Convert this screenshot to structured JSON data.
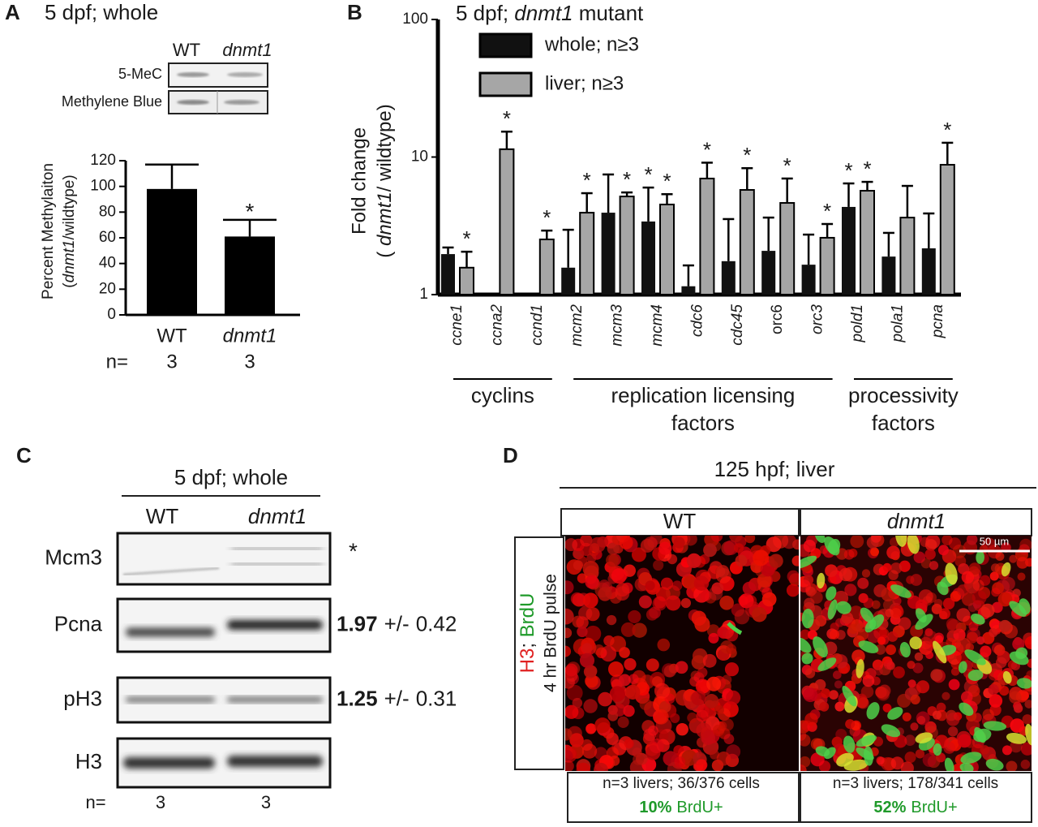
{
  "chart_data": [
    {
      "type": "bar",
      "panel": "A",
      "title": "5 dpf; whole",
      "blot": {
        "columns": [
          "WT",
          "dnmt1"
        ],
        "rows": [
          "5-MeC",
          "Methylene Blue"
        ]
      },
      "y_label": "Percent Methylaiton",
      "y_label2_parts": [
        "(",
        "dnmt1",
        "/wildtype)"
      ],
      "categories": [
        "WT",
        "dnmt1"
      ],
      "category_italic": [
        false,
        true
      ],
      "values": [
        98,
        61
      ],
      "errors": [
        19,
        13
      ],
      "significant": [
        false,
        true
      ],
      "asterisk": "*",
      "color": "#000000",
      "ylim": [
        0,
        120
      ],
      "yticks": [
        0,
        20,
        40,
        60,
        80,
        100,
        120
      ],
      "n_label": "n=",
      "n": [
        3,
        3
      ]
    },
    {
      "type": "bar",
      "panel": "B",
      "title_parts": [
        "5 dpf; ",
        "dnmt1",
        " mutant"
      ],
      "y_label": "Fold change",
      "y_label2_parts": [
        "( ",
        "dnmt1",
        "/ wildtype)"
      ],
      "log_scale": true,
      "ylim": [
        1,
        100
      ],
      "yticks": [
        1,
        10,
        100
      ],
      "asterisk": "*",
      "categories": [
        "ccne1",
        "ccna2",
        "ccnd1",
        "mcm2",
        "mcm3",
        "mcm4",
        "cdc6",
        "cdc45",
        "orc6",
        "orc3",
        "pold1",
        "pola1",
        "pcna"
      ],
      "category_italic": [
        true,
        true,
        true,
        true,
        true,
        true,
        true,
        true,
        false,
        true,
        true,
        true,
        true
      ],
      "series": [
        {
          "name": "whole; n≥3",
          "color": "#111111",
          "values": [
            1.97,
            null,
            null,
            1.57,
            3.94,
            3.4,
            1.15,
            1.75,
            2.08,
            1.65,
            4.34,
            1.89,
            2.17
          ],
          "errors": [
            0.23,
            null,
            null,
            1.39,
            3.53,
            2.6,
            0.48,
            1.79,
            1.55,
            1.08,
            2.09,
            0.92,
            1.72
          ],
          "significant": [
            false,
            false,
            false,
            false,
            false,
            true,
            false,
            false,
            false,
            false,
            true,
            false,
            false
          ]
        },
        {
          "name": "liver; n≥3",
          "color": "#a6a6a6",
          "values": [
            1.57,
            11.4,
            2.52,
            3.94,
            5.17,
            4.52,
            6.98,
            5.77,
            4.64,
            2.59,
            5.69,
            3.63,
            8.79
          ],
          "errors": [
            0.48,
            3.9,
            0.4,
            1.52,
            0.36,
            0.85,
            2.12,
            2.53,
            2.34,
            0.67,
            0.91,
            2.54,
            3.91
          ],
          "significant": [
            true,
            true,
            true,
            true,
            true,
            true,
            true,
            true,
            true,
            true,
            true,
            false,
            true
          ]
        }
      ],
      "groups": [
        {
          "label_lines": [
            "cyclins"
          ],
          "first": 0,
          "last": 2
        },
        {
          "label_lines": [
            "replication licensing",
            "factors"
          ],
          "first": 3,
          "last": 9
        },
        {
          "label_lines": [
            "processivity",
            "factors"
          ],
          "first": 10,
          "last": 12
        }
      ]
    }
  ],
  "panel_c": {
    "panel": "C",
    "title": "5 dpf; whole",
    "columns": [
      "WT",
      "dnmt1"
    ],
    "pm": "+/-",
    "rows": [
      {
        "label": "Mcm3",
        "mark": "*"
      },
      {
        "label": "Pcna",
        "fold": 1.97,
        "sd": 0.42
      },
      {
        "label": "pH3",
        "fold": 1.25,
        "sd": 0.31
      },
      {
        "label": "H3"
      }
    ],
    "n_label": "n=",
    "n": [
      3,
      3
    ]
  },
  "panel_d": {
    "panel": "D",
    "title": "125 hpf; liver",
    "columns": [
      "WT",
      "dnmt1"
    ],
    "stain_parts": [
      "H3",
      "; ",
      "BrdU"
    ],
    "pulse": "4 hr BrdU pulse",
    "scale_bar": "50 µm",
    "counts": [
      {
        "text": "n=3 livers; 36/376 cells",
        "pct": "10%",
        "label": "BrdU+"
      },
      {
        "text": "n=3 livers; 178/341 cells",
        "pct": "52%",
        "label": "BrdU+"
      }
    ]
  }
}
